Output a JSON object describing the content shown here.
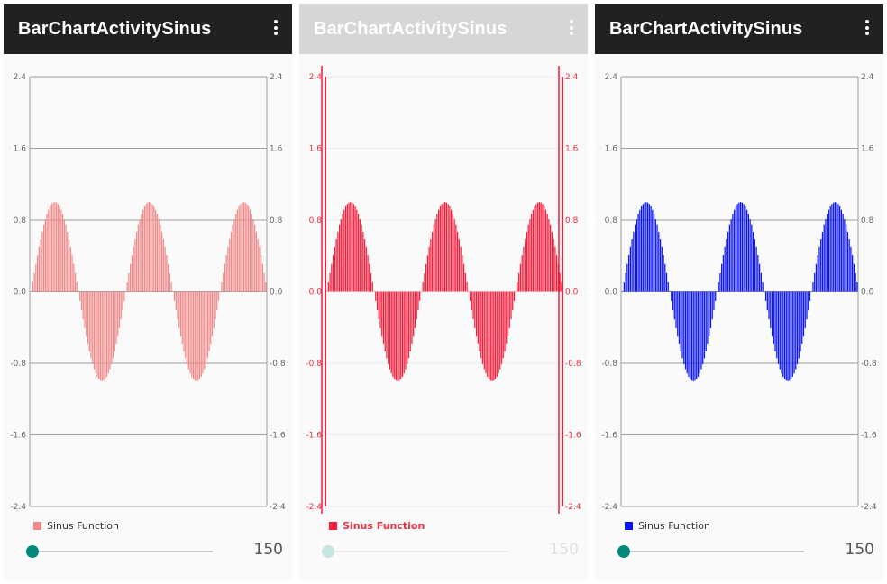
{
  "panels": [
    {
      "title": "BarChartActivitySinus",
      "menu_icon": "more-vert-icon",
      "bar_color": "#f08a8a",
      "legend": "Sinus Function",
      "slider_value": "150",
      "faded": false
    },
    {
      "title": "BarChartActivitySinus",
      "menu_icon": "more-vert-icon",
      "bar_color": "#f51d3a",
      "legend": "Sinus Function",
      "slider_value": "150",
      "faded": true
    },
    {
      "title": "BarChartActivitySinus",
      "menu_icon": "more-vert-icon",
      "bar_color": "#0a14f5",
      "legend": "Sinus Function",
      "slider_value": "150",
      "faded": false
    }
  ],
  "chart_data": [
    {
      "type": "bar",
      "function": "sin",
      "bar_count": 150,
      "cycles": 2.5,
      "amplitude": 1.0,
      "ylim": [
        -2.4,
        2.4
      ],
      "left_axis_ticks": [
        "2.4",
        "1.6",
        "0.8",
        "0.0",
        "-0.8",
        "-1.6",
        "-2.4"
      ],
      "right_axis_ticks": [
        "2.4",
        "1.6",
        "0.8",
        "0.0",
        "-0.8",
        "-1.6",
        "-2.4"
      ],
      "series": [
        {
          "name": "Sinus Function",
          "color": "#f08a8a"
        }
      ],
      "legend": "bottom-left",
      "grid": true
    },
    {
      "type": "bar",
      "function": "sin",
      "bar_count": 150,
      "cycles": 2.5,
      "amplitude": 1.0,
      "ylim": [
        -2.4,
        2.4
      ],
      "left_axis_ticks": [
        "2.4",
        "1.6",
        "0.8",
        "0.0",
        "-0.8",
        "-1.6",
        "-2.4"
      ],
      "right_axis_ticks": [
        "2.4",
        "1.6",
        "0.8",
        "0.0",
        "-0.8",
        "-1.6",
        "-2.4"
      ],
      "series": [
        {
          "name": "Sinus Function",
          "color": "#f51d3a"
        }
      ],
      "legend": "bottom-left",
      "grid": true
    },
    {
      "type": "bar",
      "function": "sin",
      "bar_count": 150,
      "cycles": 2.5,
      "amplitude": 1.0,
      "ylim": [
        -2.4,
        2.4
      ],
      "left_axis_ticks": [
        "2.4",
        "1.6",
        "0.8",
        "0.0",
        "-0.8",
        "-1.6",
        "-2.4"
      ],
      "right_axis_ticks": [
        "2.4",
        "1.6",
        "0.8",
        "0.0",
        "-0.8",
        "-1.6",
        "-2.4"
      ],
      "series": [
        {
          "name": "Sinus Function",
          "color": "#0a14f5"
        }
      ],
      "legend": "bottom-left",
      "grid": true
    }
  ]
}
